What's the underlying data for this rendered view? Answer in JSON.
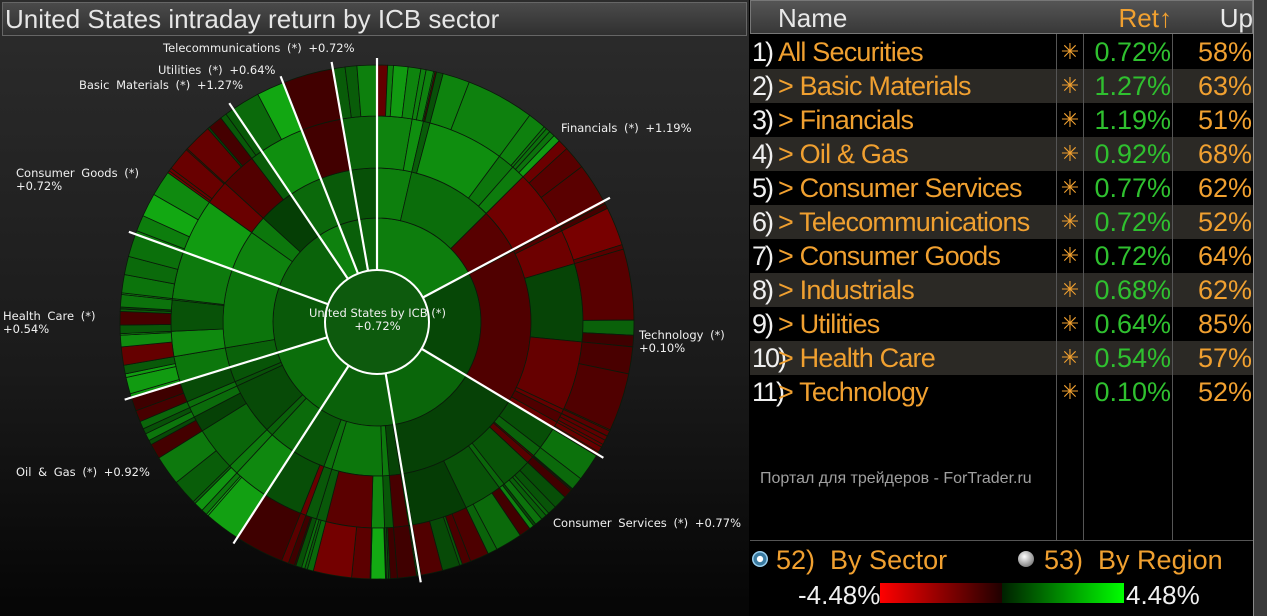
{
  "title": "United States intraday return by ICB sector",
  "center": {
    "label": "United States by ICB (*)",
    "value": "+0.72%"
  },
  "colors": {
    "accent": "#f0a030",
    "positive": "#2fc02f",
    "negative": "#ff0000",
    "divider": "#ffffff"
  },
  "sectors": [
    {
      "name": "Financials",
      "weight_pct": 17.2,
      "ret": 1.19,
      "label": "Financials (*) +1.19%"
    },
    {
      "name": "Technology",
      "weight_pct": 16.4,
      "ret": 0.1,
      "label": "Technology (*)",
      "label2": "+0.10%"
    },
    {
      "name": "Consumer Services",
      "weight_pct": 13.75,
      "ret": 0.77,
      "label": "Consumer Services (*) +0.77%"
    },
    {
      "name": "Industrials",
      "weight_pct": 11.8,
      "ret": 0.68
    },
    {
      "name": "Oil & Gas",
      "weight_pct": 11.1,
      "ret": 0.92,
      "label": "Oil & Gas (*) +0.92%"
    },
    {
      "name": "Health Care",
      "weight_pct": 10.3,
      "ret": 0.54,
      "label": "Health Care (*)",
      "label2": "+0.54%"
    },
    {
      "name": "Consumer Goods",
      "weight_pct": 10.0,
      "ret": 0.72,
      "label": "Consumer Goods (*)",
      "label2": "+0.72%"
    },
    {
      "name": "Basic Materials",
      "weight_pct": 3.5,
      "ret": 1.27,
      "label": "Basic Materials (*) +1.27%"
    },
    {
      "name": "Utilities",
      "weight_pct": 3.2,
      "ret": 0.64,
      "label": "Utilities (*) +0.64%"
    },
    {
      "name": "Telecommunications",
      "weight_pct": 2.75,
      "ret": 0.72,
      "label": "Telecommunications (*) +0.72%"
    }
  ],
  "table": {
    "headers": {
      "name": "Name",
      "ret": "Ret↑",
      "up": "Up"
    },
    "rows": [
      {
        "num": "1)",
        "name": "All Securities",
        "star": "✳",
        "ret": "0.72%",
        "up": "58%"
      },
      {
        "num": "2)",
        "name": "> Basic Materials",
        "star": "✳",
        "ret": "1.27%",
        "up": "63%"
      },
      {
        "num": "3)",
        "name": "> Financials",
        "star": "✳",
        "ret": "1.19%",
        "up": "51%"
      },
      {
        "num": "4)",
        "name": "> Oil & Gas",
        "star": "✳",
        "ret": "0.92%",
        "up": "68%"
      },
      {
        "num": "5)",
        "name": "> Consumer Services",
        "star": "✳",
        "ret": "0.77%",
        "up": "62%"
      },
      {
        "num": "6)",
        "name": "> Telecommunications",
        "star": "✳",
        "ret": "0.72%",
        "up": "52%"
      },
      {
        "num": "7)",
        "name": "> Consumer Goods",
        "star": "✳",
        "ret": "0.72%",
        "up": "64%"
      },
      {
        "num": "8)",
        "name": "> Industrials",
        "star": "✳",
        "ret": "0.68%",
        "up": "62%"
      },
      {
        "num": "9)",
        "name": "> Utilities",
        "star": "✳",
        "ret": "0.64%",
        "up": "85%"
      },
      {
        "num": "10)",
        "name": "> Health Care",
        "star": "✳",
        "ret": "0.54%",
        "up": "57%"
      },
      {
        "num": "11)",
        "name": "> Technology",
        "star": "✳",
        "ret": "0.10%",
        "up": "52%"
      }
    ]
  },
  "watermark": "Портал для трейдеров - ForTrader.ru",
  "options": {
    "by_sector": {
      "num": "52)",
      "label": "By Sector",
      "selected": true
    },
    "by_region": {
      "num": "53)",
      "label": "By Region",
      "selected": false
    }
  },
  "legend": {
    "min": "-4.48%",
    "max": "4.48%"
  }
}
